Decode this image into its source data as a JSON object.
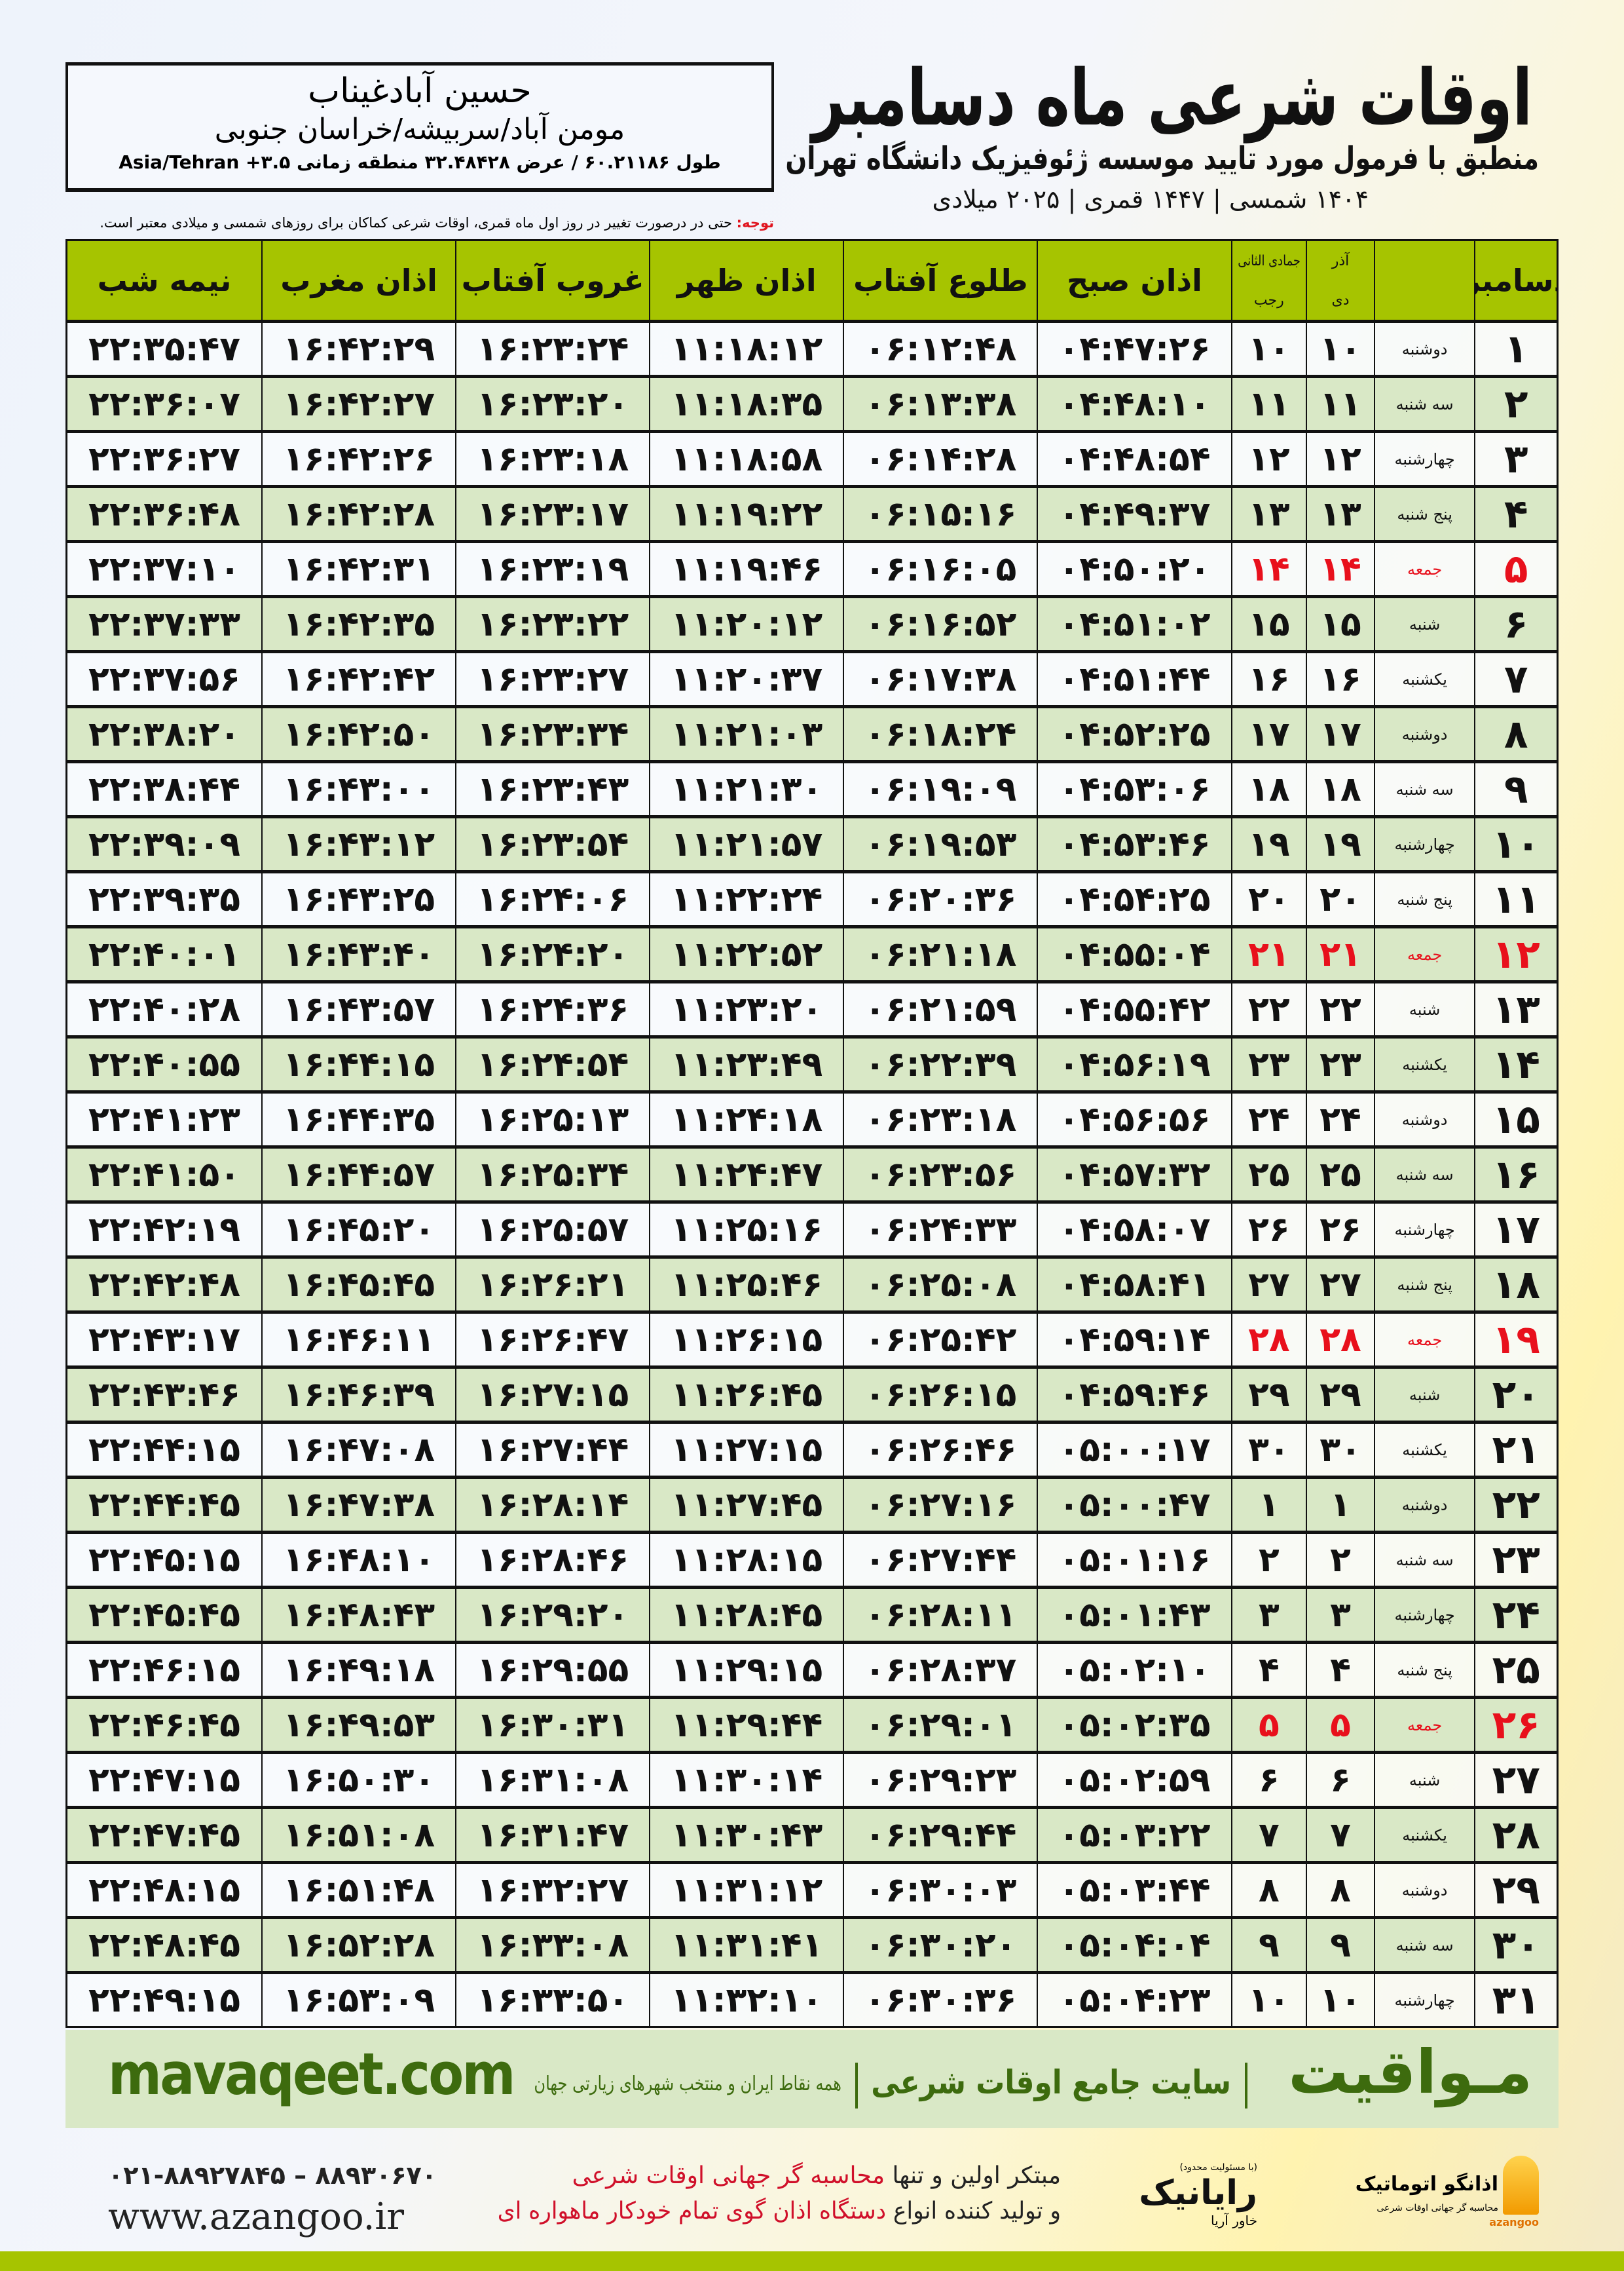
{
  "header": {
    "title": "اوقات شرعی ماه دسامبر",
    "subtitle": "منطبق با فرمول مورد تایید موسسه ژئوفیزیک دانشگاه تهران",
    "dates": "۱۴۰۴ شمسی | ۱۴۴۷ قمری | ۲۰۲۵ میلادی"
  },
  "location": {
    "name": "حسین آبادغیناب",
    "place": "مومن آباد/سربیشه/خراسان جنوبی",
    "coords": "طول ۶۰.۲۱۱۸۶ / عرض ۳۲.۴۸۴۲۸ منطقه زمانی ۳.۵+ Asia/Tehran"
  },
  "note": {
    "label": "توجه:",
    "text": " حتی در درصورت تغییر در روز اول ماه قمری، اوقات شرعی کماکان برای روزهای شمسی و میلادی معتبر است."
  },
  "table": {
    "headers": {
      "day": "دسامبر",
      "shamsi_top": "آذر",
      "shamsi_bottom": "دی",
      "qamari_top": "جمادی الثانی",
      "qamari_bottom": "رجب",
      "sobh": "اذان صبح",
      "tolu": "طلوع آفتاب",
      "zohr": "اذان ظهر",
      "ghorub": "غروب آفتاب",
      "maghrib": "اذان مغرب",
      "nimeh": "نیمه شب"
    },
    "columns": [
      "day",
      "weekday",
      "shamsi",
      "qamari",
      "sobh",
      "tolu",
      "zohr",
      "ghorub",
      "maghrib",
      "nimeh"
    ],
    "holiday_color": "#e8101c",
    "rows": [
      [
        "۱",
        "دوشنبه",
        "۱۰",
        "۱۰",
        "۰۴:۴۷:۲۶",
        "۰۶:۱۲:۴۸",
        "۱۱:۱۸:۱۲",
        "۱۶:۲۳:۲۴",
        "۱۶:۴۲:۲۹",
        "۲۲:۳۵:۴۷"
      ],
      [
        "۲",
        "سه شنبه",
        "۱۱",
        "۱۱",
        "۰۴:۴۸:۱۰",
        "۰۶:۱۳:۳۸",
        "۱۱:۱۸:۳۵",
        "۱۶:۲۳:۲۰",
        "۱۶:۴۲:۲۷",
        "۲۲:۳۶:۰۷"
      ],
      [
        "۳",
        "چهارشنبه",
        "۱۲",
        "۱۲",
        "۰۴:۴۸:۵۴",
        "۰۶:۱۴:۲۸",
        "۱۱:۱۸:۵۸",
        "۱۶:۲۳:۱۸",
        "۱۶:۴۲:۲۶",
        "۲۲:۳۶:۲۷"
      ],
      [
        "۴",
        "پنج شنبه",
        "۱۳",
        "۱۳",
        "۰۴:۴۹:۳۷",
        "۰۶:۱۵:۱۶",
        "۱۱:۱۹:۲۲",
        "۱۶:۲۳:۱۷",
        "۱۶:۴۲:۲۸",
        "۲۲:۳۶:۴۸"
      ],
      [
        "۵",
        "جمعه",
        "۱۴",
        "۱۴",
        "۰۴:۵۰:۲۰",
        "۰۶:۱۶:۰۵",
        "۱۱:۱۹:۴۶",
        "۱۶:۲۳:۱۹",
        "۱۶:۴۲:۳۱",
        "۲۲:۳۷:۱۰"
      ],
      [
        "۶",
        "شنبه",
        "۱۵",
        "۱۵",
        "۰۴:۵۱:۰۲",
        "۰۶:۱۶:۵۲",
        "۱۱:۲۰:۱۲",
        "۱۶:۲۳:۲۲",
        "۱۶:۴۲:۳۵",
        "۲۲:۳۷:۳۳"
      ],
      [
        "۷",
        "یکشنبه",
        "۱۶",
        "۱۶",
        "۰۴:۵۱:۴۴",
        "۰۶:۱۷:۳۸",
        "۱۱:۲۰:۳۷",
        "۱۶:۲۳:۲۷",
        "۱۶:۴۲:۴۲",
        "۲۲:۳۷:۵۶"
      ],
      [
        "۸",
        "دوشنبه",
        "۱۷",
        "۱۷",
        "۰۴:۵۲:۲۵",
        "۰۶:۱۸:۲۴",
        "۱۱:۲۱:۰۳",
        "۱۶:۲۳:۳۴",
        "۱۶:۴۲:۵۰",
        "۲۲:۳۸:۲۰"
      ],
      [
        "۹",
        "سه شنبه",
        "۱۸",
        "۱۸",
        "۰۴:۵۳:۰۶",
        "۰۶:۱۹:۰۹",
        "۱۱:۲۱:۳۰",
        "۱۶:۲۳:۴۳",
        "۱۶:۴۳:۰۰",
        "۲۲:۳۸:۴۴"
      ],
      [
        "۱۰",
        "چهارشنبه",
        "۱۹",
        "۱۹",
        "۰۴:۵۳:۴۶",
        "۰۶:۱۹:۵۳",
        "۱۱:۲۱:۵۷",
        "۱۶:۲۳:۵۴",
        "۱۶:۴۳:۱۲",
        "۲۲:۳۹:۰۹"
      ],
      [
        "۱۱",
        "پنج شنبه",
        "۲۰",
        "۲۰",
        "۰۴:۵۴:۲۵",
        "۰۶:۲۰:۳۶",
        "۱۱:۲۲:۲۴",
        "۱۶:۲۴:۰۶",
        "۱۶:۴۳:۲۵",
        "۲۲:۳۹:۳۵"
      ],
      [
        "۱۲",
        "جمعه",
        "۲۱",
        "۲۱",
        "۰۴:۵۵:۰۴",
        "۰۶:۲۱:۱۸",
        "۱۱:۲۲:۵۲",
        "۱۶:۲۴:۲۰",
        "۱۶:۴۳:۴۰",
        "۲۲:۴۰:۰۱"
      ],
      [
        "۱۳",
        "شنبه",
        "۲۲",
        "۲۲",
        "۰۴:۵۵:۴۲",
        "۰۶:۲۱:۵۹",
        "۱۱:۲۳:۲۰",
        "۱۶:۲۴:۳۶",
        "۱۶:۴۳:۵۷",
        "۲۲:۴۰:۲۸"
      ],
      [
        "۱۴",
        "یکشنبه",
        "۲۳",
        "۲۳",
        "۰۴:۵۶:۱۹",
        "۰۶:۲۲:۳۹",
        "۱۱:۲۳:۴۹",
        "۱۶:۲۴:۵۴",
        "۱۶:۴۴:۱۵",
        "۲۲:۴۰:۵۵"
      ],
      [
        "۱۵",
        "دوشنبه",
        "۲۴",
        "۲۴",
        "۰۴:۵۶:۵۶",
        "۰۶:۲۳:۱۸",
        "۱۱:۲۴:۱۸",
        "۱۶:۲۵:۱۳",
        "۱۶:۴۴:۳۵",
        "۲۲:۴۱:۲۳"
      ],
      [
        "۱۶",
        "سه شنبه",
        "۲۵",
        "۲۵",
        "۰۴:۵۷:۳۲",
        "۰۶:۲۳:۵۶",
        "۱۱:۲۴:۴۷",
        "۱۶:۲۵:۳۴",
        "۱۶:۴۴:۵۷",
        "۲۲:۴۱:۵۰"
      ],
      [
        "۱۷",
        "چهارشنبه",
        "۲۶",
        "۲۶",
        "۰۴:۵۸:۰۷",
        "۰۶:۲۴:۳۳",
        "۱۱:۲۵:۱۶",
        "۱۶:۲۵:۵۷",
        "۱۶:۴۵:۲۰",
        "۲۲:۴۲:۱۹"
      ],
      [
        "۱۸",
        "پنج شنبه",
        "۲۷",
        "۲۷",
        "۰۴:۵۸:۴۱",
        "۰۶:۲۵:۰۸",
        "۱۱:۲۵:۴۶",
        "۱۶:۲۶:۲۱",
        "۱۶:۴۵:۴۵",
        "۲۲:۴۲:۴۸"
      ],
      [
        "۱۹",
        "جمعه",
        "۲۸",
        "۲۸",
        "۰۴:۵۹:۱۴",
        "۰۶:۲۵:۴۲",
        "۱۱:۲۶:۱۵",
        "۱۶:۲۶:۴۷",
        "۱۶:۴۶:۱۱",
        "۲۲:۴۳:۱۷"
      ],
      [
        "۲۰",
        "شنبه",
        "۲۹",
        "۲۹",
        "۰۴:۵۹:۴۶",
        "۰۶:۲۶:۱۵",
        "۱۱:۲۶:۴۵",
        "۱۶:۲۷:۱۵",
        "۱۶:۴۶:۳۹",
        "۲۲:۴۳:۴۶"
      ],
      [
        "۲۱",
        "یکشنبه",
        "۳۰",
        "۳۰",
        "۰۵:۰۰:۱۷",
        "۰۶:۲۶:۴۶",
        "۱۱:۲۷:۱۵",
        "۱۶:۲۷:۴۴",
        "۱۶:۴۷:۰۸",
        "۲۲:۴۴:۱۵"
      ],
      [
        "۲۲",
        "دوشنبه",
        "۱",
        "۱",
        "۰۵:۰۰:۴۷",
        "۰۶:۲۷:۱۶",
        "۱۱:۲۷:۴۵",
        "۱۶:۲۸:۱۴",
        "۱۶:۴۷:۳۸",
        "۲۲:۴۴:۴۵"
      ],
      [
        "۲۳",
        "سه شنبه",
        "۲",
        "۲",
        "۰۵:۰۱:۱۶",
        "۰۶:۲۷:۴۴",
        "۱۱:۲۸:۱۵",
        "۱۶:۲۸:۴۶",
        "۱۶:۴۸:۱۰",
        "۲۲:۴۵:۱۵"
      ],
      [
        "۲۴",
        "چهارشنبه",
        "۳",
        "۳",
        "۰۵:۰۱:۴۳",
        "۰۶:۲۸:۱۱",
        "۱۱:۲۸:۴۵",
        "۱۶:۲۹:۲۰",
        "۱۶:۴۸:۴۳",
        "۲۲:۴۵:۴۵"
      ],
      [
        "۲۵",
        "پنج شنبه",
        "۴",
        "۴",
        "۰۵:۰۲:۱۰",
        "۰۶:۲۸:۳۷",
        "۱۱:۲۹:۱۵",
        "۱۶:۲۹:۵۵",
        "۱۶:۴۹:۱۸",
        "۲۲:۴۶:۱۵"
      ],
      [
        "۲۶",
        "جمعه",
        "۵",
        "۵",
        "۰۵:۰۲:۳۵",
        "۰۶:۲۹:۰۱",
        "۱۱:۲۹:۴۴",
        "۱۶:۳۰:۳۱",
        "۱۶:۴۹:۵۳",
        "۲۲:۴۶:۴۵"
      ],
      [
        "۲۷",
        "شنبه",
        "۶",
        "۶",
        "۰۵:۰۲:۵۹",
        "۰۶:۲۹:۲۳",
        "۱۱:۳۰:۱۴",
        "۱۶:۳۱:۰۸",
        "۱۶:۵۰:۳۰",
        "۲۲:۴۷:۱۵"
      ],
      [
        "۲۸",
        "یکشنبه",
        "۷",
        "۷",
        "۰۵:۰۳:۲۲",
        "۰۶:۲۹:۴۴",
        "۱۱:۳۰:۴۳",
        "۱۶:۳۱:۴۷",
        "۱۶:۵۱:۰۸",
        "۲۲:۴۷:۴۵"
      ],
      [
        "۲۹",
        "دوشنبه",
        "۸",
        "۸",
        "۰۵:۰۳:۴۴",
        "۰۶:۳۰:۰۳",
        "۱۱:۳۱:۱۲",
        "۱۶:۳۲:۲۷",
        "۱۶:۵۱:۴۸",
        "۲۲:۴۸:۱۵"
      ],
      [
        "۳۰",
        "سه شنبه",
        "۹",
        "۹",
        "۰۵:۰۴:۰۴",
        "۰۶:۳۰:۲۰",
        "۱۱:۳۱:۴۱",
        "۱۶:۳۳:۰۸",
        "۱۶:۵۲:۲۸",
        "۲۲:۴۸:۴۵"
      ],
      [
        "۳۱",
        "چهارشنبه",
        "۱۰",
        "۱۰",
        "۰۵:۰۴:۲۳",
        "۰۶:۳۰:۳۶",
        "۱۱:۳۲:۱۰",
        "۱۶:۳۳:۵۰",
        "۱۶:۵۳:۰۹",
        "۲۲:۴۹:۱۵"
      ]
    ]
  },
  "footer": {
    "site": "mavaqeet.com",
    "brand": "مـواقیت",
    "slogan": "سایت جامع اوقات شرعی",
    "reach": "همه نقاط ایران و منتخب شهرهای زیارتی جهان",
    "phone": "۰۲۱-۸۸۹۲۷۸۴۵ – ۸۸۹۳۰۶۷۰",
    "url": "www.azangoo.ir",
    "promo1_a": "مبتکر اولین و تنها ",
    "promo1_b": "محاسبه گر جهانی اوقات شرعی",
    "promo2_a": "و تولید کننده انواع ",
    "promo2_b": "دستگاه اذان گوی تمام خودکار ماهواره ای",
    "logo_rayanik": "رایانیک",
    "logo_rayanik_sub": "خاور آریا",
    "logo_rayanik_note": "(با مسئولیت محدود)",
    "logo_azangoo": "اذانگو اتوماتیک",
    "logo_azangoo_sub": "محاسبه گر جهانی اوقات شرعی",
    "logo_azangoo_en": "azangoo",
    "accent_green": "#3d6b0e",
    "bar_green": "#a6c400"
  }
}
